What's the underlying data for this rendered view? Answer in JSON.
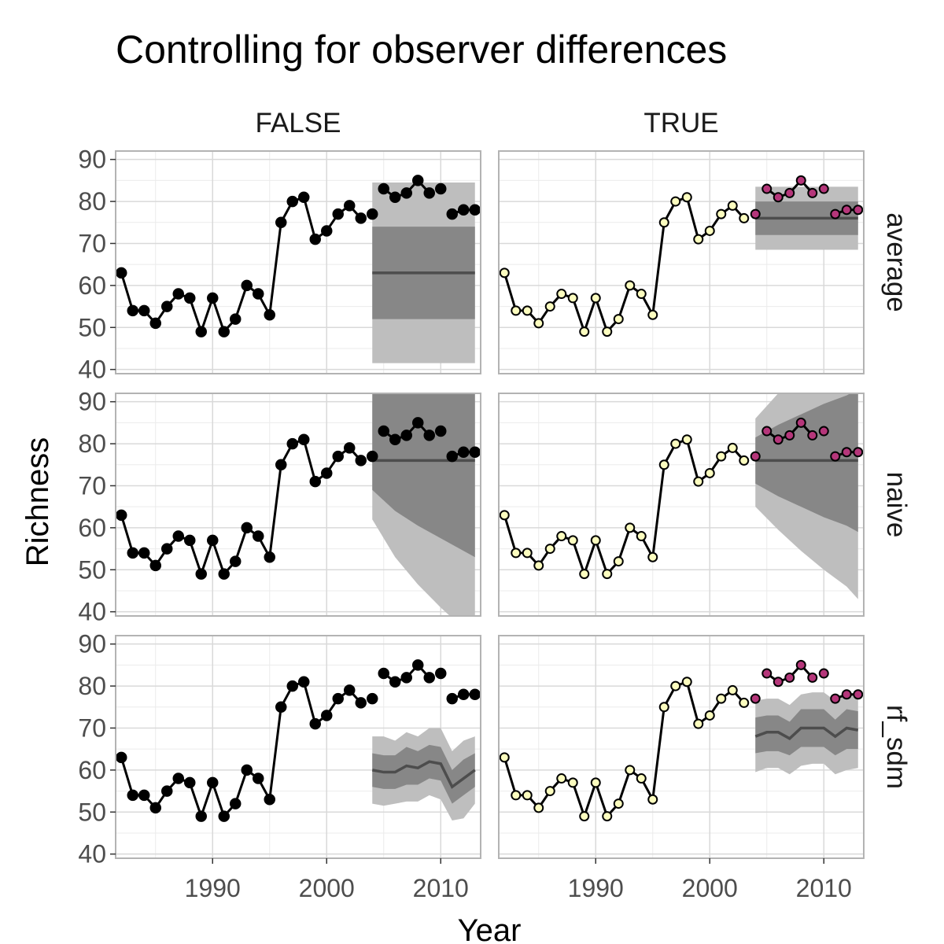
{
  "chart_data": {
    "type": "line",
    "title": "Controlling for observer differences",
    "xlabel": "Year",
    "ylabel": "Richness",
    "xlim": [
      1981.5,
      2013.5
    ],
    "ylim": [
      39,
      92
    ],
    "x_ticks": [
      1990,
      2000,
      2010
    ],
    "y_ticks": [
      40,
      50,
      60,
      70,
      80,
      90
    ],
    "x_tick_labels": [
      "1990",
      "2000",
      "2010"
    ],
    "y_tick_labels": [
      "40",
      "50",
      "60",
      "70",
      "80",
      "90"
    ],
    "grid": true,
    "columns": [
      "FALSE",
      "TRUE"
    ],
    "rows": [
      "average",
      "naive",
      "rf_sdm"
    ],
    "colors": {
      "line": "#000000",
      "point_false": "#000000",
      "point_train": "#fcfdbf",
      "point_test": "#b5367a",
      "band_outer": "#bebebe",
      "band_inner": "#878787",
      "forecast_line": "#4d4d4d",
      "panel_border": "#b3b3b3",
      "grid_major": "#d9d9d9",
      "grid_minor": "#ebebeb"
    },
    "observed": {
      "years": [
        1982,
        1983,
        1984,
        1985,
        1986,
        1987,
        1988,
        1989,
        1990,
        1991,
        1992,
        1993,
        1994,
        1995,
        1996,
        1997,
        1998,
        1999,
        2000,
        2001,
        2002,
        2003,
        2004,
        2005,
        2006,
        2007,
        2008,
        2009,
        2010,
        2011,
        2012,
        2013
      ],
      "richness": [
        63,
        54,
        54,
        51,
        55,
        58,
        57,
        49,
        57,
        49,
        52,
        60,
        58,
        53,
        75,
        80,
        81,
        71,
        73,
        77,
        79,
        76,
        77,
        83,
        81,
        82,
        85,
        82,
        83,
        77,
        78,
        78
      ],
      "missing_years": [
        2004,
        2010
      ],
      "split_year": 2004
    },
    "forecasts": {
      "FALSE": {
        "average": {
          "x": [
            2004,
            2013
          ],
          "mean": [
            63,
            63
          ],
          "inner_lo": [
            52,
            52
          ],
          "inner_hi": [
            74,
            74
          ],
          "outer_lo": [
            41.5,
            41.5
          ],
          "outer_hi": [
            84.5,
            84.5
          ]
        },
        "naive": {
          "x": [
            2004,
            2006,
            2008,
            2010,
            2012,
            2013
          ],
          "mean": [
            76,
            76,
            76,
            76,
            76,
            76
          ],
          "inner_lo": [
            69,
            64,
            60.5,
            57.5,
            54.5,
            53
          ],
          "inner_hi": [
            92,
            92,
            92,
            92,
            92,
            92
          ],
          "outer_lo": [
            62,
            53,
            46.5,
            41,
            36,
            34
          ],
          "outer_hi": [
            90,
            92,
            92,
            92,
            92,
            92
          ]
        },
        "rf_sdm": {
          "x": [
            2004,
            2005,
            2006,
            2007,
            2008,
            2009,
            2010,
            2011,
            2012,
            2013
          ],
          "mean": [
            60,
            59.5,
            59.5,
            61,
            60.5,
            62,
            61.5,
            56,
            58,
            60
          ],
          "inner_lo": [
            56,
            55.5,
            55.5,
            56.5,
            56.5,
            58,
            57.5,
            52,
            54,
            56
          ],
          "inner_hi": [
            64,
            63.5,
            63.5,
            65.5,
            64.5,
            66,
            65.5,
            60,
            62.5,
            64
          ],
          "outer_lo": [
            52,
            51.5,
            52,
            52.5,
            52.5,
            54,
            53,
            48,
            48.5,
            52
          ],
          "outer_hi": [
            68,
            68,
            67,
            69,
            68,
            70,
            70,
            64.5,
            67,
            68
          ]
        }
      },
      "TRUE": {
        "average": {
          "x": [
            2004,
            2013
          ],
          "mean": [
            76,
            76
          ],
          "inner_lo": [
            72,
            72
          ],
          "inner_hi": [
            80,
            80
          ],
          "outer_lo": [
            68.5,
            68.5
          ],
          "outer_hi": [
            83.5,
            83.5
          ]
        },
        "naive": {
          "x": [
            2004,
            2006,
            2008,
            2010,
            2012,
            2013
          ],
          "mean": [
            76,
            76,
            76,
            76,
            76,
            76
          ],
          "inner_lo": [
            70.5,
            67.5,
            65,
            62.5,
            60.5,
            59
          ],
          "inner_hi": [
            81.5,
            84.5,
            87,
            89.5,
            91.5,
            93
          ],
          "outer_lo": [
            65,
            59.5,
            54.5,
            50,
            46,
            43
          ],
          "outer_hi": [
            86,
            92,
            92,
            92,
            92,
            92
          ]
        },
        "rf_sdm": {
          "x": [
            2004,
            2005,
            2006,
            2007,
            2008,
            2009,
            2010,
            2011,
            2012,
            2013
          ],
          "mean": [
            68,
            69,
            69,
            67.5,
            70,
            70,
            70,
            68,
            70,
            69.5
          ],
          "inner_lo": [
            64,
            64.5,
            64.5,
            63.5,
            65.5,
            65.5,
            65.5,
            63.5,
            65,
            65
          ],
          "inner_hi": [
            72.5,
            73,
            73,
            71.5,
            74.5,
            74.5,
            74.5,
            72,
            74.5,
            74
          ],
          "outer_lo": [
            59.5,
            60.5,
            60.5,
            59,
            61,
            61.5,
            61.5,
            59,
            60,
            60.5
          ],
          "outer_hi": [
            76.5,
            77,
            77,
            75.5,
            78,
            78.5,
            78.5,
            76.5,
            78,
            77.5
          ]
        }
      }
    }
  }
}
